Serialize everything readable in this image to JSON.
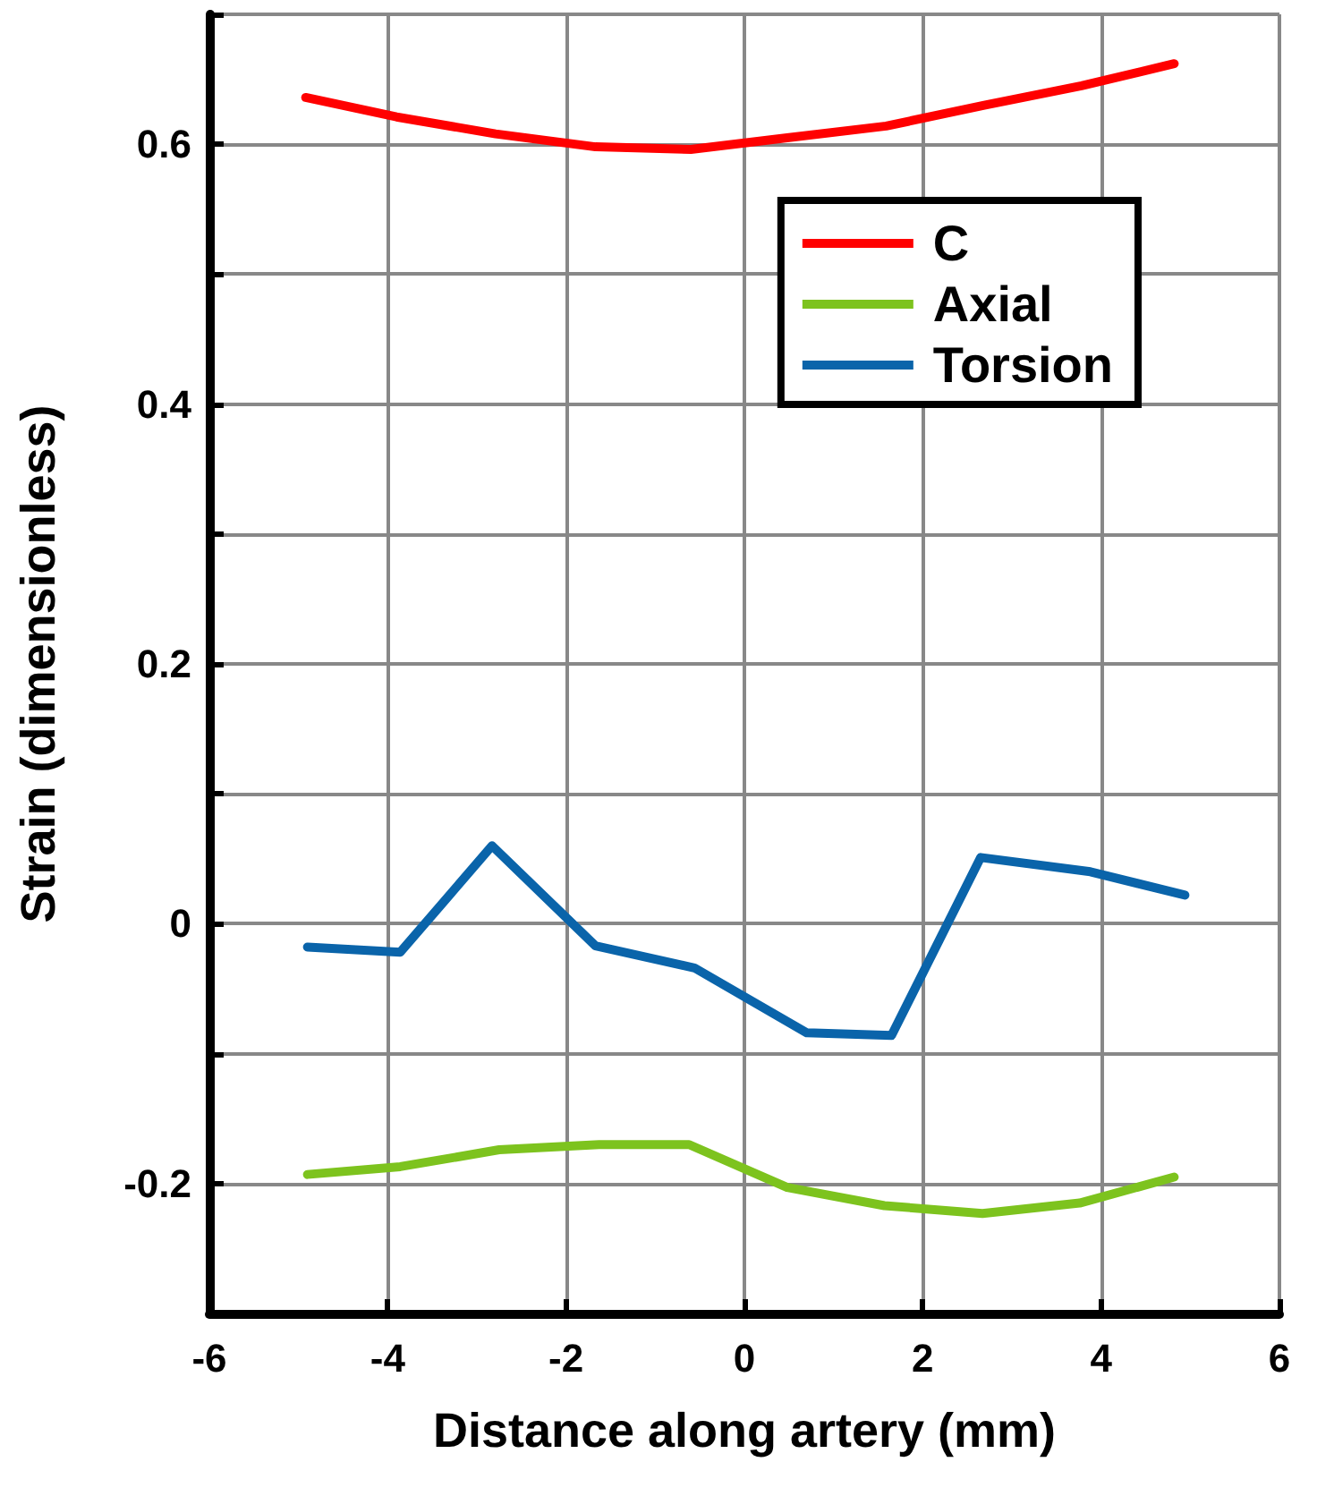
{
  "chart_data": {
    "type": "line",
    "xlabel": "Distance along artery (mm)",
    "ylabel": "Strain (dimensionless)",
    "xlim": [
      -6,
      6
    ],
    "xticks": [
      -6,
      -4,
      -2,
      0,
      2,
      4,
      6
    ],
    "ylim": [
      -0.3,
      0.7
    ],
    "yticks": [
      {
        "value": -0.3,
        "label": null
      },
      -0.2,
      {
        "value": -0.1,
        "label": null
      },
      0,
      {
        "value": 0.1,
        "label": null
      },
      0.2,
      {
        "value": 0.3,
        "label": null
      },
      0.4,
      {
        "value": 0.5,
        "label": null
      },
      0.6,
      {
        "value": 0.7,
        "label": null
      }
    ],
    "grid": true,
    "legend": "top right",
    "marker": "none",
    "line_style": "solid",
    "series": [
      {
        "name": "C",
        "color": "#ff0000",
        "x": [
          -4.92,
          -3.9,
          -2.79,
          -1.67,
          -0.6,
          0.48,
          1.59,
          2.69,
          3.78,
          4.82
        ],
        "values": [
          0.636,
          0.621,
          0.608,
          0.598,
          0.596,
          0.605,
          0.614,
          0.63,
          0.645,
          0.662
        ]
      },
      {
        "name": "Axial",
        "color": "#7dc31e",
        "x": [
          -4.9,
          -3.86,
          -2.75,
          -1.63,
          -0.62,
          0.48,
          1.57,
          2.67,
          3.76,
          4.82
        ],
        "values": [
          -0.193,
          -0.187,
          -0.174,
          -0.17,
          -0.17,
          -0.203,
          -0.217,
          -0.223,
          -0.215,
          -0.195
        ]
      },
      {
        "name": "Torsion",
        "color": "#0a64aa",
        "x": [
          -4.9,
          -3.86,
          -2.83,
          -1.67,
          -0.56,
          0.7,
          1.65,
          2.65,
          3.88,
          4.94
        ],
        "values": [
          -0.018,
          -0.022,
          0.06,
          -0.017,
          -0.034,
          -0.084,
          -0.086,
          0.051,
          0.04,
          0.022
        ]
      }
    ]
  }
}
